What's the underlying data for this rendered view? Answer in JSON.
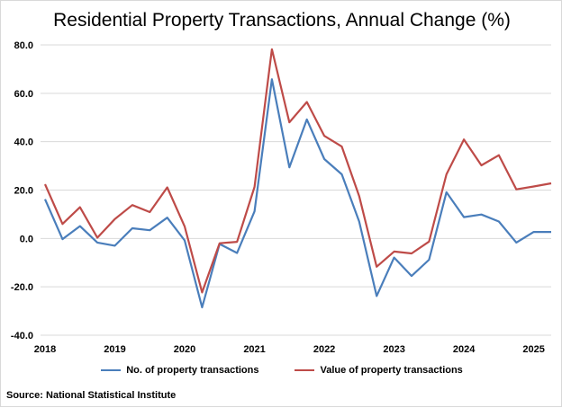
{
  "chart_data": {
    "type": "line",
    "title": "Residential Property Transactions, Annual Change (%)",
    "source": "Source: National Statistical Institute",
    "ylim": [
      -40,
      80
    ],
    "yticks": [
      80,
      60,
      40,
      20,
      0,
      -20,
      -40
    ],
    "ytick_labels": [
      "80.0",
      "60.0",
      "40.0",
      "20.0",
      "0.0",
      "-20.0",
      "-40.0"
    ],
    "xtick_labels": [
      "2018",
      "2019",
      "2020",
      "2021",
      "2022",
      "2023",
      "2024",
      "2025"
    ],
    "x": [
      "2018Q1",
      "2018Q2",
      "2018Q3",
      "2018Q4",
      "2019Q1",
      "2019Q2",
      "2019Q3",
      "2019Q4",
      "2020Q1",
      "2020Q2",
      "2020Q3",
      "2020Q4",
      "2021Q1",
      "2021Q2",
      "2021Q3",
      "2021Q4",
      "2022Q1",
      "2022Q2",
      "2022Q3",
      "2022Q4",
      "2023Q1",
      "2023Q2",
      "2023Q3",
      "2023Q4",
      "2024Q1",
      "2024Q2",
      "2024Q3",
      "2024Q4",
      "2025Q1",
      "2025Q2"
    ],
    "grid": true,
    "legend_position": "bottom",
    "series": [
      {
        "name": "No. of property transactions",
        "color": "#4a7ebb",
        "values": [
          16.2,
          -0.3,
          5.1,
          -1.7,
          -3.0,
          4.2,
          3.4,
          8.6,
          -0.8,
          -28.5,
          -2.3,
          -6.0,
          11.2,
          65.8,
          29.4,
          49.2,
          32.8,
          26.5,
          7.0,
          -23.8,
          -7.9,
          -15.5,
          -8.8,
          19.1,
          8.8,
          9.9,
          7.0,
          -1.7,
          2.7,
          2.7
        ]
      },
      {
        "name": "Value of property transactions",
        "color": "#be4b48",
        "values": [
          22.4,
          6.0,
          12.9,
          0.3,
          8.0,
          13.8,
          10.9,
          21.1,
          5.0,
          -22.3,
          -2.0,
          -1.4,
          21.3,
          78.2,
          48.0,
          56.4,
          42.4,
          38.0,
          17.5,
          -11.7,
          -5.4,
          -6.2,
          -1.3,
          26.5,
          40.9,
          30.2,
          34.4,
          20.3,
          21.5,
          22.8
        ]
      }
    ]
  }
}
